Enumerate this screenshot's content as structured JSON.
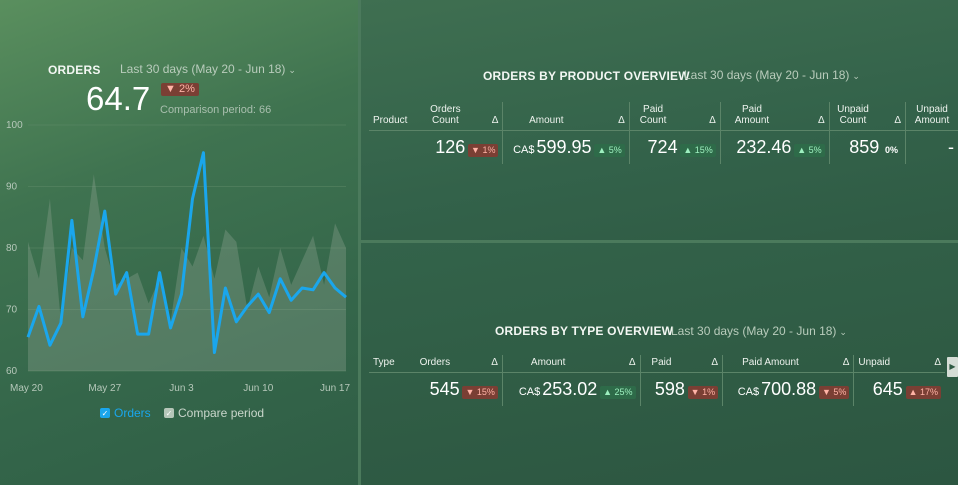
{
  "orders_widget": {
    "title": "ORDERS",
    "period": "Last 30 days (May 20 - Jun 18)",
    "value": "64.7",
    "change": "2%",
    "comparison": "Comparison period: 66",
    "legend": {
      "primary": "Orders",
      "compare": "Compare period"
    },
    "colors": {
      "primary": "#1aa6ec",
      "compare": "#8fa393"
    }
  },
  "chart_data": {
    "type": "line",
    "title": "",
    "xlabel": "",
    "ylabel": "",
    "ylim": [
      60,
      100
    ],
    "y_ticks": [
      100,
      90,
      80,
      70,
      60
    ],
    "x_tick_labels": [
      "May 20",
      "May 27",
      "Jun 3",
      "Jun 10",
      "Jun 17"
    ],
    "x_tick_days": [
      0,
      7,
      14,
      21,
      28
    ],
    "x": [
      "May 20",
      "May 21",
      "May 22",
      "May 23",
      "May 24",
      "May 25",
      "May 26",
      "May 27",
      "May 28",
      "May 29",
      "May 30",
      "May 31",
      "Jun 1",
      "Jun 2",
      "Jun 3",
      "Jun 4",
      "Jun 5",
      "Jun 6",
      "Jun 7",
      "Jun 8",
      "Jun 9",
      "Jun 10",
      "Jun 11",
      "Jun 12",
      "Jun 13",
      "Jun 14",
      "Jun 15",
      "Jun 16",
      "Jun 17",
      "Jun 18"
    ],
    "series": [
      {
        "name": "Orders",
        "values": [
          65.5,
          70.5,
          64.2,
          67.8,
          84.5,
          68.8,
          76.5,
          86,
          72.5,
          76,
          66,
          66,
          76,
          67,
          72.5,
          88,
          95.5,
          63,
          73.5,
          68,
          70.5,
          72.5,
          69.5,
          75,
          71.5,
          73.5,
          73.2,
          76,
          73.5,
          72
        ]
      },
      {
        "name": "Compare period",
        "values": [
          81,
          75,
          88,
          68,
          80,
          78,
          92,
          80,
          74,
          75,
          76,
          71,
          75,
          68,
          80,
          77,
          82,
          75,
          83,
          81,
          70,
          77,
          72,
          80,
          74,
          78,
          82,
          74,
          84,
          80
        ]
      }
    ],
    "grid": true,
    "legend": "bottom"
  },
  "product_widget": {
    "title": "ORDERS BY PRODUCT OVERVIEW",
    "period": "Last 30 days (May 20 - Jun 18)",
    "row_header": "Product",
    "columns": [
      {
        "label1": "Orders",
        "label2": "Count",
        "delta_label": "Δ",
        "currency": "",
        "value": "126",
        "change": "1%",
        "dir": "down"
      },
      {
        "label1": "Amount",
        "label2": "",
        "delta_label": "Δ",
        "currency": "CA$",
        "value": "599.95",
        "change": "5%",
        "dir": "up"
      },
      {
        "label1": "Paid",
        "label2": "Count",
        "delta_label": "Δ",
        "currency": "",
        "value": "724",
        "change": "15%",
        "dir": "up"
      },
      {
        "label1": "Paid",
        "label2": "Amount",
        "delta_label": "Δ",
        "currency": "",
        "value": "232.46",
        "change": "5%",
        "dir": "up"
      },
      {
        "label1": "Unpaid",
        "label2": "Count",
        "delta_label": "Δ",
        "currency": "",
        "value": "859",
        "change": "0%",
        "dir": "flat"
      },
      {
        "label1": "Unpaid",
        "label2": "Amount",
        "delta_label": "",
        "currency": "",
        "value": "-",
        "change": "",
        "dir": ""
      }
    ]
  },
  "type_widget": {
    "title": "ORDERS BY TYPE OVERVIEW",
    "period": "Last 30 days (May 20 - Jun 18)",
    "row_header": "Type",
    "columns": [
      {
        "label": "Orders",
        "delta_label": "Δ",
        "currency": "",
        "value": "545",
        "change": "15%",
        "dir": "down"
      },
      {
        "label": "Amount",
        "delta_label": "Δ",
        "currency": "CA$",
        "value": "253.02",
        "change": "25%",
        "dir": "up"
      },
      {
        "label": "Paid",
        "delta_label": "Δ",
        "currency": "",
        "value": "598",
        "change": "1%",
        "dir": "down"
      },
      {
        "label": "Paid Amount",
        "delta_label": "Δ",
        "currency": "CA$",
        "value": "700.88",
        "change": "5%",
        "dir": "down"
      },
      {
        "label": "Unpaid",
        "delta_label": "Δ",
        "currency": "",
        "value": "645",
        "change": "17%",
        "dir": "up"
      }
    ]
  },
  "icons": {
    "chevron": "chevron-down-icon",
    "arrow_down": "▼",
    "arrow_up": "▲",
    "scroll_right": "▶",
    "check": "✓"
  }
}
